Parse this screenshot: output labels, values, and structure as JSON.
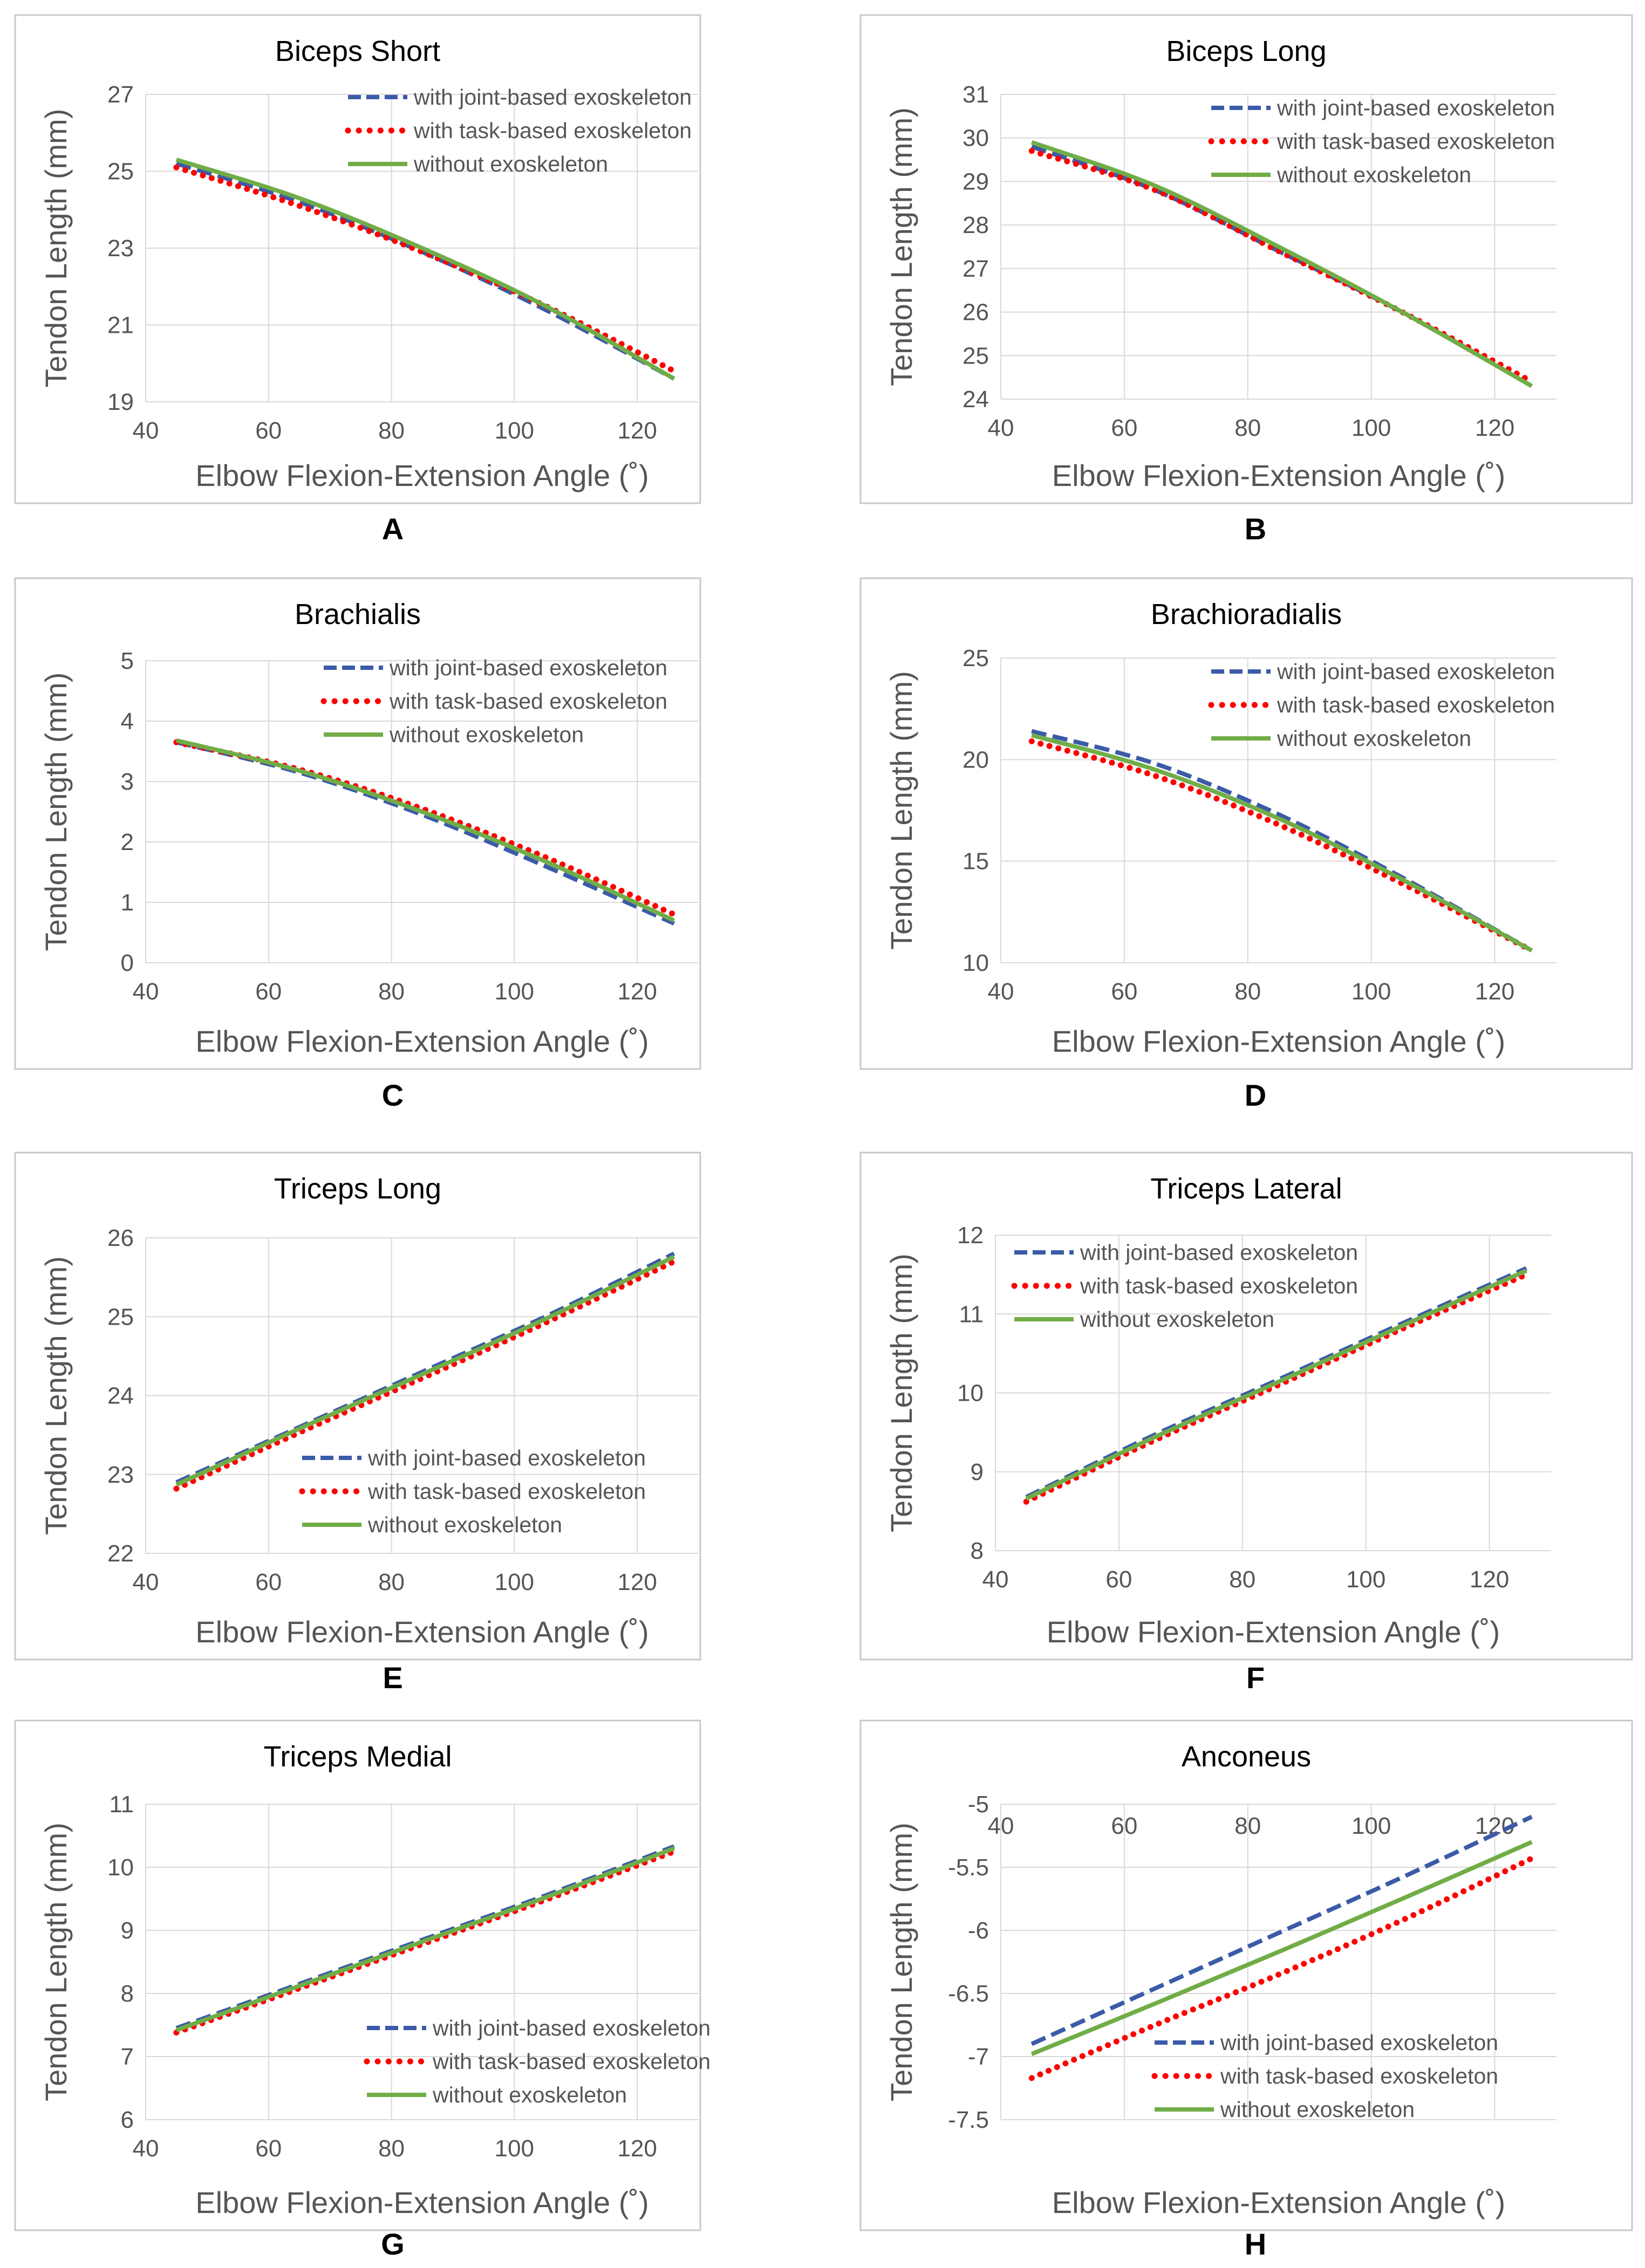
{
  "chart_data": [
    {
      "panel": "A",
      "type": "line",
      "title": "Biceps Short",
      "xlabel": "Elbow Flexion-Extension Angle (˚)",
      "ylabel": "Tendon Length (mm)",
      "xlim": [
        40,
        130
      ],
      "ylim": [
        19,
        27
      ],
      "xticks": [
        "40",
        "60",
        "80",
        "100",
        "120"
      ],
      "yticks": [
        "19",
        "21",
        "23",
        "25",
        "27"
      ],
      "legend_position": "top-right",
      "x": [
        45,
        65,
        85,
        105,
        126
      ],
      "series": [
        {
          "name": "with joint-based exoskeleton",
          "values": [
            25.2,
            24.2,
            22.9,
            21.4,
            19.6
          ]
        },
        {
          "name": "with task-based exoskeleton",
          "values": [
            25.1,
            24.1,
            22.9,
            21.5,
            19.8
          ]
        },
        {
          "name": "without exoskeleton",
          "values": [
            25.3,
            24.3,
            23.0,
            21.5,
            19.6
          ]
        }
      ]
    },
    {
      "panel": "B",
      "type": "line",
      "title": "Biceps Long",
      "xlabel": "Elbow Flexion-Extension Angle (˚)",
      "ylabel": "Tendon Length (mm)",
      "xlim": [
        40,
        130
      ],
      "ylim": [
        24,
        31
      ],
      "xticks": [
        "40",
        "60",
        "80",
        "100",
        "120"
      ],
      "yticks": [
        "24",
        "25",
        "26",
        "27",
        "28",
        "29",
        "30",
        "31"
      ],
      "legend_position": "top-right",
      "x": [
        45,
        65,
        85,
        105,
        126
      ],
      "series": [
        {
          "name": "with joint-based exoskeleton",
          "values": [
            29.8,
            28.8,
            27.4,
            26.0,
            24.3
          ]
        },
        {
          "name": "with task-based exoskeleton",
          "values": [
            29.7,
            28.8,
            27.4,
            26.0,
            24.4
          ]
        },
        {
          "name": "without exoskeleton",
          "values": [
            29.9,
            28.9,
            27.5,
            26.0,
            24.3
          ]
        }
      ]
    },
    {
      "panel": "C",
      "type": "line",
      "title": "Brachialis",
      "xlabel": "Elbow Flexion-Extension Angle (˚)",
      "ylabel": "Tendon Length (mm)",
      "xlim": [
        40,
        130
      ],
      "ylim": [
        0,
        5
      ],
      "xticks": [
        "40",
        "60",
        "80",
        "100",
        "120"
      ],
      "yticks": [
        "0",
        "1",
        "2",
        "3",
        "4",
        "5"
      ],
      "legend_position": "top-right",
      "x": [
        45,
        65,
        85,
        105,
        126
      ],
      "series": [
        {
          "name": "with joint-based exoskeleton",
          "values": [
            3.65,
            3.15,
            2.45,
            1.6,
            0.65
          ]
        },
        {
          "name": "with task-based exoskeleton",
          "values": [
            3.65,
            3.2,
            2.55,
            1.75,
            0.8
          ]
        },
        {
          "name": "without exoskeleton",
          "values": [
            3.68,
            3.18,
            2.5,
            1.68,
            0.7
          ]
        }
      ]
    },
    {
      "panel": "D",
      "type": "line",
      "title": "Brachioradialis",
      "xlabel": "Elbow Flexion-Extension Angle (˚)",
      "ylabel": "Tendon Length (mm)",
      "xlim": [
        40,
        130
      ],
      "ylim": [
        10,
        25
      ],
      "xticks": [
        "40",
        "60",
        "80",
        "100",
        "120"
      ],
      "yticks": [
        "10",
        "15",
        "20",
        "25"
      ],
      "legend_position": "top-right",
      "x": [
        45,
        65,
        85,
        105,
        126
      ],
      "series": [
        {
          "name": "with joint-based exoskeleton",
          "values": [
            21.4,
            19.8,
            17.3,
            14.2,
            10.6
          ]
        },
        {
          "name": "with task-based exoskeleton",
          "values": [
            20.9,
            19.2,
            16.8,
            13.9,
            10.6
          ]
        },
        {
          "name": "without exoskeleton",
          "values": [
            21.2,
            19.5,
            17.1,
            14.1,
            10.6
          ]
        }
      ]
    },
    {
      "panel": "E",
      "type": "line",
      "title": "Triceps Long",
      "xlabel": "Elbow Flexion-Extension Angle (˚)",
      "ylabel": "Tendon Length (mm)",
      "xlim": [
        40,
        130
      ],
      "ylim": [
        22,
        26
      ],
      "xticks": [
        "40",
        "60",
        "80",
        "100",
        "120"
      ],
      "yticks": [
        "22",
        "23",
        "24",
        "25",
        "26"
      ],
      "legend_position": "bottom-right",
      "x": [
        45,
        65,
        85,
        105,
        126
      ],
      "series": [
        {
          "name": "with joint-based exoskeleton",
          "values": [
            22.9,
            23.6,
            24.3,
            25.0,
            25.8
          ]
        },
        {
          "name": "with task-based exoskeleton",
          "values": [
            22.82,
            23.53,
            24.22,
            24.92,
            25.7
          ]
        },
        {
          "name": "without exoskeleton",
          "values": [
            22.87,
            23.58,
            24.27,
            24.97,
            25.76
          ]
        }
      ]
    },
    {
      "panel": "F",
      "type": "line",
      "title": "Triceps Lateral",
      "xlabel": "Elbow Flexion-Extension Angle (˚)",
      "ylabel": "Tendon Length (mm)",
      "xlim": [
        40,
        130
      ],
      "ylim": [
        8,
        12
      ],
      "xticks": [
        "40",
        "60",
        "80",
        "100",
        "120"
      ],
      "yticks": [
        "8",
        "9",
        "10",
        "11",
        "12"
      ],
      "legend_position": "top-left",
      "x": [
        45,
        65,
        85,
        105,
        126
      ],
      "series": [
        {
          "name": "with joint-based exoskeleton",
          "values": [
            8.68,
            9.44,
            10.14,
            10.85,
            11.58
          ]
        },
        {
          "name": "with task-based exoskeleton",
          "values": [
            8.62,
            9.37,
            10.07,
            10.78,
            11.5
          ]
        },
        {
          "name": "without exoskeleton",
          "values": [
            8.66,
            9.41,
            10.11,
            10.82,
            11.55
          ]
        }
      ]
    },
    {
      "panel": "G",
      "type": "line",
      "title": "Triceps Medial",
      "xlabel": "Elbow Flexion-Extension Angle (˚)",
      "ylabel": "Tendon Length (mm)",
      "xlim": [
        40,
        130
      ],
      "ylim": [
        6,
        11
      ],
      "xticks": [
        "40",
        "60",
        "80",
        "100",
        "120"
      ],
      "yticks": [
        "6",
        "7",
        "8",
        "9",
        "10",
        "11"
      ],
      "legend_position": "bottom-right",
      "x": [
        45,
        65,
        85,
        105,
        126
      ],
      "series": [
        {
          "name": "with joint-based exoskeleton",
          "values": [
            7.45,
            8.15,
            8.85,
            9.55,
            10.33
          ]
        },
        {
          "name": "with task-based exoskeleton",
          "values": [
            7.38,
            8.08,
            8.78,
            9.48,
            10.25
          ]
        },
        {
          "name": "without exoskeleton",
          "values": [
            7.42,
            8.12,
            8.82,
            9.52,
            10.3
          ]
        }
      ]
    },
    {
      "panel": "H",
      "type": "line",
      "title": "Anconeus",
      "xlabel": "Elbow Flexion-Extension Angle (˚)",
      "ylabel": "Tendon Length (mm)",
      "xlim": [
        40,
        130
      ],
      "ylim": [
        -7.5,
        -5
      ],
      "xaxis_position": "top",
      "xticks": [
        "40",
        "60",
        "80",
        "100",
        "120"
      ],
      "yticks": [
        "-7.5",
        "-7",
        "-6.5",
        "-6",
        "-5.5",
        "-5"
      ],
      "legend_position": "bottom-right",
      "x": [
        45,
        65,
        85,
        105,
        126
      ],
      "series": [
        {
          "name": "with joint-based exoskeleton",
          "values": [
            -6.9,
            -6.46,
            -6.02,
            -5.58,
            -5.1
          ]
        },
        {
          "name": "with task-based exoskeleton",
          "values": [
            -7.17,
            -6.75,
            -6.35,
            -5.92,
            -5.43
          ]
        },
        {
          "name": "without exoskeleton",
          "values": [
            -6.98,
            -6.58,
            -6.17,
            -5.75,
            -5.3
          ]
        }
      ]
    }
  ],
  "series_styles": [
    {
      "color": "#3b5ba8",
      "dash": "dashed"
    },
    {
      "color": "#ff0000",
      "dash": "dotted"
    },
    {
      "color": "#70ad47",
      "dash": "solid"
    }
  ],
  "panel_border_color": "#c8c8c8",
  "grid_color": "#d9d9d9"
}
